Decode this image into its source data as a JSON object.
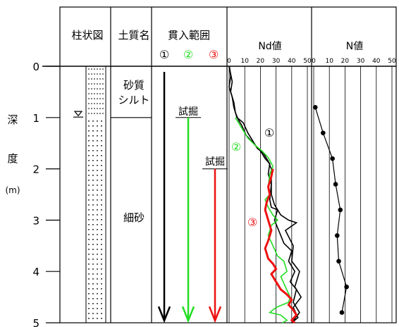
{
  "chart_data": {
    "type": "line",
    "title": "",
    "colors": {
      "black": "#000000",
      "green": "#22dd22",
      "red": "#ee1111"
    },
    "y_axis": {
      "label_chars": [
        "深",
        "度",
        "(m)"
      ],
      "range": [
        0,
        5
      ],
      "ticks": [
        "0",
        "1",
        "2",
        "3",
        "4",
        "5"
      ]
    },
    "columns": {
      "boring_log": "柱状図",
      "soil_name": "土質名",
      "penetration": "貫入範囲",
      "nd_value": "Nd値",
      "n_value": "N値"
    },
    "soil_layers": [
      {
        "name_lines": [
          "砂質",
          "シルト"
        ],
        "from": 0,
        "to": 1
      },
      {
        "name_lines": [
          "細砂"
        ],
        "from": 1,
        "to": 5
      }
    ],
    "groundwater_depth": 0.95,
    "penetration_tests": [
      {
        "label": "①",
        "color": "#000000",
        "start_depth": 0,
        "start_note": ""
      },
      {
        "label": "②",
        "color": "#22dd22",
        "start_depth": 1.0,
        "start_note": "試掘"
      },
      {
        "label": "③",
        "color": "#ee1111",
        "start_depth": 2.0,
        "start_note": "試掘"
      }
    ],
    "nd_axis": {
      "range": [
        0,
        50
      ],
      "ticks": [
        "0",
        "10",
        "20",
        "30",
        "40",
        "50"
      ]
    },
    "n_axis": {
      "range": [
        0,
        50
      ],
      "ticks": [
        "0",
        "10",
        "20",
        "30",
        "40",
        "50"
      ]
    },
    "nd_series": [
      {
        "name": "①",
        "color": "#000000",
        "points": [
          [
            0.2,
            0.0
          ],
          [
            1,
            0.2
          ],
          [
            0,
            0.4
          ],
          [
            2,
            0.6
          ],
          [
            3,
            0.8
          ],
          [
            5,
            1.0
          ],
          [
            9,
            1.1
          ],
          [
            12,
            1.3
          ],
          [
            16,
            1.5
          ],
          [
            18,
            1.6
          ],
          [
            20,
            1.65
          ],
          [
            23,
            1.8
          ],
          [
            26,
            1.9
          ],
          [
            25,
            2.1
          ],
          [
            27,
            2.3
          ],
          [
            27,
            2.5
          ],
          [
            29,
            2.7
          ],
          [
            33,
            2.9
          ],
          [
            38,
            3.0
          ],
          [
            43,
            3.05
          ],
          [
            36,
            3.2
          ],
          [
            41,
            3.5
          ],
          [
            40,
            3.8
          ],
          [
            45,
            4.0
          ],
          [
            42,
            4.3
          ],
          [
            46,
            4.5
          ],
          [
            41,
            4.7
          ],
          [
            44,
            4.9
          ],
          [
            40,
            5.0
          ]
        ]
      },
      {
        "name": "",
        "color": "#000000",
        "points": [
          [
            0,
            0.0
          ],
          [
            2,
            0.3
          ],
          [
            1,
            0.5
          ],
          [
            3,
            0.7
          ],
          [
            4,
            0.9
          ],
          [
            6,
            1.05
          ],
          [
            8,
            1.15
          ],
          [
            11,
            1.35
          ],
          [
            14,
            1.45
          ],
          [
            17,
            1.55
          ],
          [
            22,
            1.7
          ],
          [
            25,
            1.85
          ],
          [
            27,
            2.0
          ],
          [
            27,
            2.3
          ],
          [
            26,
            2.6
          ],
          [
            27,
            2.75
          ],
          [
            31,
            2.8
          ],
          [
            29,
            3.0
          ],
          [
            33,
            3.3
          ],
          [
            35,
            3.45
          ],
          [
            40,
            3.6
          ],
          [
            38,
            3.8
          ],
          [
            42,
            4.0
          ],
          [
            39,
            4.2
          ],
          [
            43,
            4.35
          ],
          [
            41,
            4.6
          ],
          [
            45,
            4.8
          ],
          [
            40,
            5.0
          ]
        ]
      },
      {
        "name": "②",
        "color": "#22dd22",
        "points": [
          [
            4,
            1.0
          ],
          [
            8,
            1.2
          ],
          [
            12,
            1.4
          ],
          [
            17,
            1.55
          ],
          [
            21,
            1.65
          ],
          [
            25,
            1.78
          ],
          [
            28,
            1.95
          ],
          [
            26,
            2.1
          ],
          [
            25,
            2.35
          ],
          [
            26,
            2.5
          ],
          [
            23,
            2.6
          ],
          [
            25,
            2.75
          ],
          [
            28,
            2.9
          ],
          [
            31,
            3.0
          ],
          [
            27,
            3.1
          ],
          [
            25,
            3.3
          ],
          [
            28,
            3.5
          ],
          [
            31,
            3.7
          ],
          [
            35,
            3.8
          ],
          [
            37,
            4.0
          ],
          [
            33,
            4.1
          ],
          [
            36,
            4.3
          ],
          [
            39,
            4.5
          ],
          [
            38,
            4.6
          ],
          [
            30,
            4.7
          ],
          [
            26,
            4.8
          ],
          [
            33,
            4.85
          ],
          [
            37,
            4.95
          ],
          [
            34,
            5.0
          ]
        ]
      },
      {
        "name": "③",
        "color": "#ee1111",
        "points": [
          [
            28,
            2.0
          ],
          [
            27,
            2.15
          ],
          [
            25,
            2.35
          ],
          [
            26,
            2.5
          ],
          [
            24,
            2.65
          ],
          [
            23,
            2.8
          ],
          [
            25,
            3.0
          ],
          [
            27,
            3.2
          ],
          [
            25,
            3.4
          ],
          [
            23,
            3.55
          ],
          [
            25,
            3.75
          ],
          [
            28,
            3.85
          ],
          [
            30,
            3.95
          ],
          [
            27,
            4.05
          ],
          [
            30,
            4.2
          ],
          [
            33,
            4.35
          ],
          [
            37,
            4.45
          ],
          [
            40,
            4.55
          ],
          [
            38,
            4.65
          ],
          [
            41,
            4.75
          ],
          [
            43,
            4.85
          ],
          [
            40,
            4.95
          ],
          [
            42,
            5.0
          ]
        ]
      }
    ],
    "n_series": [
      {
        "name": "",
        "color": "#000000",
        "points": [
          [
            1,
            0.8
          ],
          [
            6,
            1.3
          ],
          [
            12,
            1.8
          ],
          [
            14,
            2.3
          ],
          [
            17,
            2.8
          ],
          [
            15,
            3.3
          ],
          [
            16,
            3.8
          ],
          [
            21,
            4.3
          ],
          [
            18,
            4.8
          ]
        ]
      }
    ]
  }
}
